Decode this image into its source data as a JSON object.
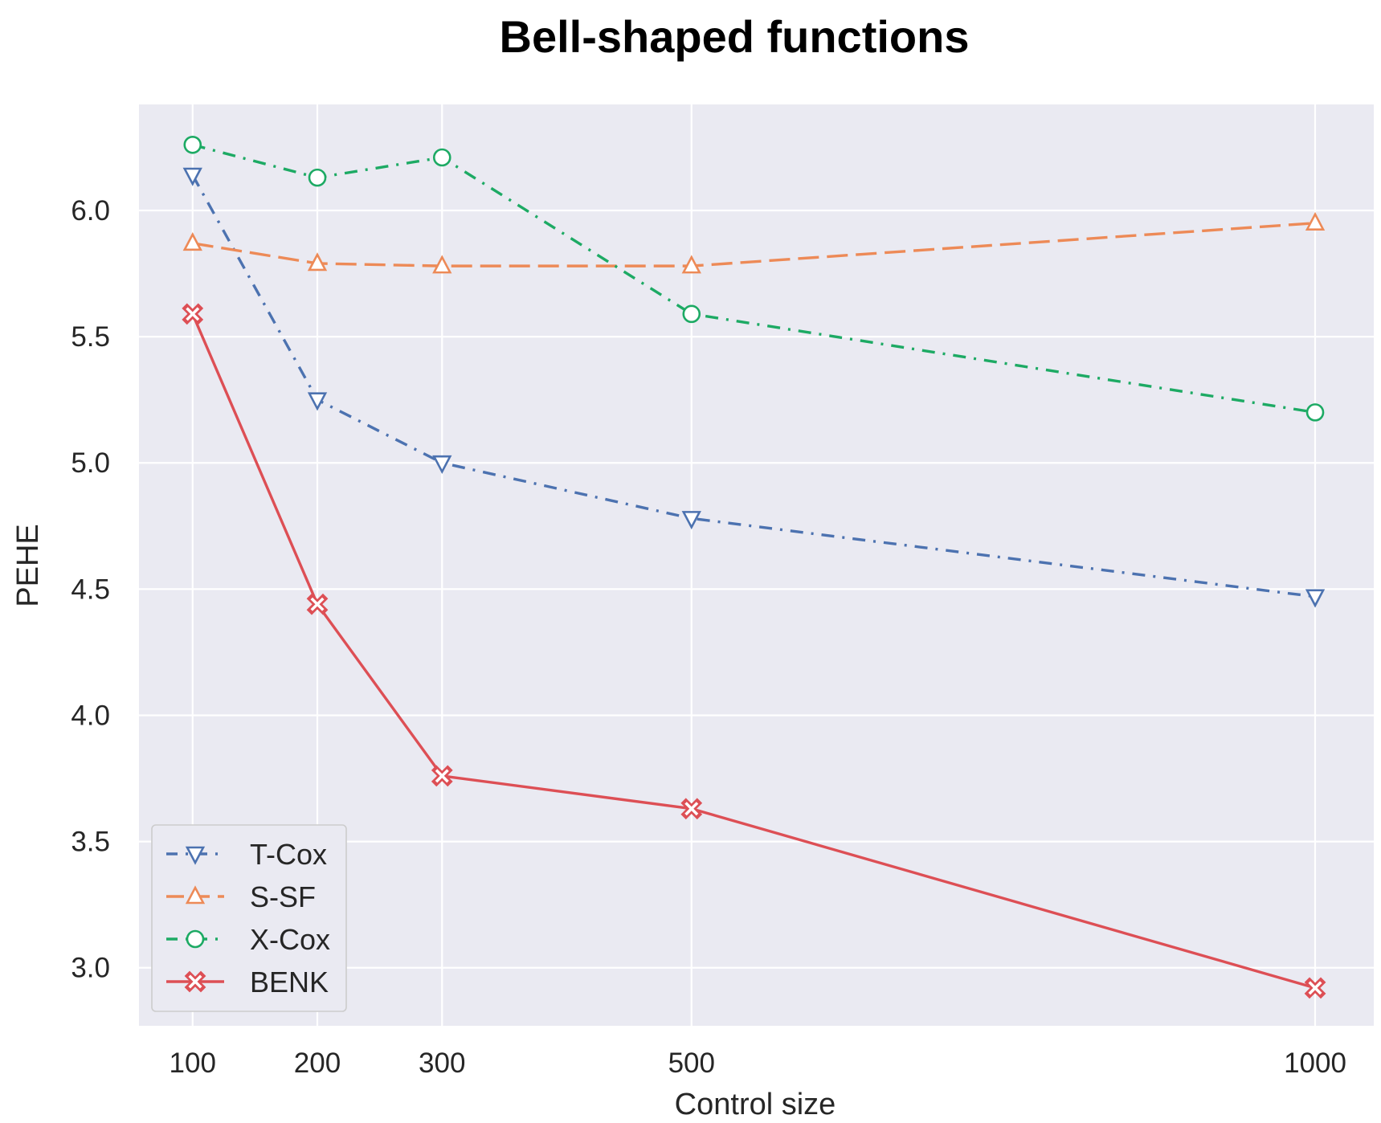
{
  "chart_data": {
    "type": "line",
    "title": "Bell-shaped functions",
    "xlabel": "Control size",
    "ylabel": "PEHE",
    "x": [
      100,
      200,
      300,
      500,
      1000
    ],
    "x_ticks": [
      "100",
      "200",
      "300",
      "500",
      "1000"
    ],
    "y_ticks": [
      "3.0",
      "3.5",
      "4.0",
      "4.5",
      "5.0",
      "5.5",
      "6.0"
    ],
    "ylim": [
      2.77,
      6.42
    ],
    "xlim": [
      57,
      1047
    ],
    "grid": true,
    "legend_position": "lower-left",
    "series": [
      {
        "name": "T-Cox",
        "values": [
          6.14,
          5.25,
          5.0,
          4.78,
          4.47
        ],
        "color": "#4c72b0",
        "marker": "triangle-down",
        "linestyle": "dashdot"
      },
      {
        "name": "S-SF",
        "values": [
          5.87,
          5.79,
          5.78,
          5.78,
          5.95
        ],
        "color": "#ed8a57",
        "marker": "triangle-up",
        "linestyle": "dashed"
      },
      {
        "name": "X-Cox",
        "values": [
          6.26,
          6.13,
          6.21,
          5.59,
          5.2
        ],
        "color": "#1daa64",
        "marker": "circle",
        "linestyle": "dashdot"
      },
      {
        "name": "BENK",
        "values": [
          5.59,
          4.44,
          3.76,
          3.63,
          2.92
        ],
        "color": "#dd4f55",
        "marker": "x-filled",
        "linestyle": "solid"
      }
    ]
  },
  "style": {
    "plot_background": "#eaeaf2",
    "grid_color": "#ffffff",
    "legend_background": "#eaeaf2",
    "legend_border": "#cccccc"
  }
}
